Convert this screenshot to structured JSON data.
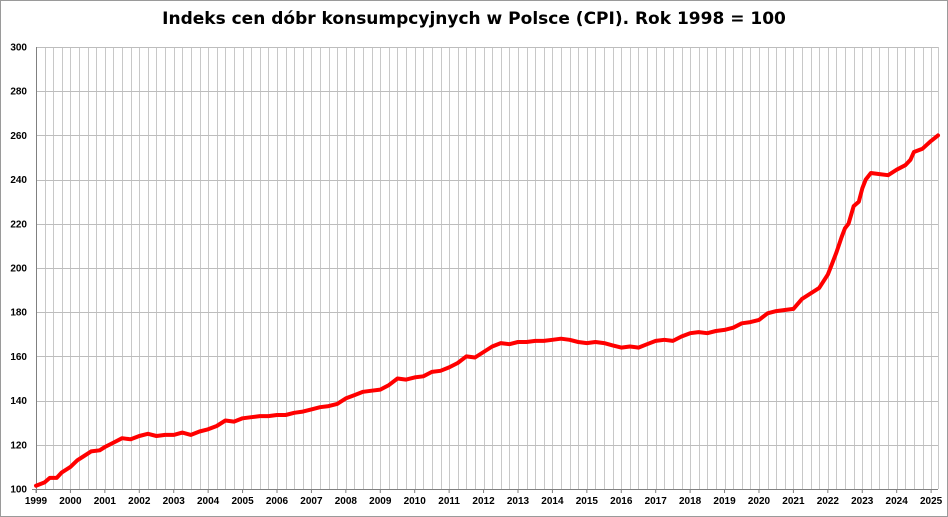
{
  "chart_data": {
    "type": "line",
    "title": "Indeks cen dóbr konsumpcyjnych w Polsce (CPI). Rok 1998 = 100",
    "xlabel": "",
    "ylabel": "",
    "ylim": [
      100,
      300
    ],
    "y_ticks": [
      "100",
      "120",
      "140",
      "160",
      "180",
      "200",
      "220",
      "240",
      "260",
      "280",
      "300"
    ],
    "x_tick_labels": [
      "1999",
      "2000",
      "2001",
      "2002",
      "2003",
      "2004",
      "2005",
      "2006",
      "2007",
      "2008",
      "2009",
      "2010",
      "2011",
      "2012",
      "2013",
      "2014",
      "2015",
      "2016",
      "2017",
      "2018",
      "2019",
      "2020",
      "2021",
      "2022",
      "2023",
      "2024",
      "2025"
    ],
    "xlim": [
      1999,
      2025.2
    ],
    "grid": true,
    "legend": "none",
    "series_color": "#ff0000",
    "series": [
      {
        "x": [
          1999,
          1999.25,
          1999.4,
          1999.6,
          1999.75,
          2000,
          2000.2,
          2000.35,
          2000.6,
          2000.85,
          2001,
          2001.25,
          2001.5,
          2001.75,
          2002,
          2002.25,
          2002.5,
          2002.75,
          2003,
          2003.25,
          2003.5,
          2003.75,
          2004,
          2004.25,
          2004.5,
          2004.75,
          2005,
          2005.25,
          2005.5,
          2005.75,
          2006,
          2006.25,
          2006.5,
          2006.75,
          2007,
          2007.25,
          2007.5,
          2007.75,
          2008,
          2008.25,
          2008.5,
          2008.75,
          2009,
          2009.25,
          2009.5,
          2009.75,
          2010,
          2010.25,
          2010.5,
          2010.75,
          2011,
          2011.25,
          2011.5,
          2011.75,
          2012,
          2012.25,
          2012.5,
          2012.75,
          2013,
          2013.25,
          2013.5,
          2013.75,
          2014,
          2014.25,
          2014.5,
          2014.75,
          2015,
          2015.25,
          2015.5,
          2015.75,
          2016,
          2016.25,
          2016.5,
          2016.75,
          2017,
          2017.25,
          2017.5,
          2017.75,
          2018,
          2018.25,
          2018.5,
          2018.75,
          2019,
          2019.25,
          2019.5,
          2019.75,
          2020,
          2020.25,
          2020.5,
          2020.75,
          2021,
          2021.25,
          2021.5,
          2021.75,
          2022,
          2022.1,
          2022.25,
          2022.4,
          2022.5,
          2022.6,
          2022.75,
          2022.9,
          2023,
          2023.1,
          2023.25,
          2023.5,
          2023.75,
          2024,
          2024.25,
          2024.4,
          2024.5,
          2024.75,
          2025,
          2025.2
        ],
        "y": [
          101.5,
          103,
          105,
          105,
          107.5,
          110,
          113,
          114.5,
          117,
          117.5,
          119,
          121,
          123,
          122.5,
          124,
          125,
          124,
          124.5,
          124.5,
          125.5,
          124.5,
          126,
          127,
          128.5,
          131,
          130.5,
          132,
          132.5,
          133,
          133,
          133.5,
          133.5,
          134.5,
          135,
          136,
          137,
          137.5,
          138.5,
          141,
          142.5,
          144,
          144.5,
          145,
          147,
          150,
          149.5,
          150.5,
          151,
          153,
          153.5,
          155,
          157,
          160,
          159.5,
          162,
          164.5,
          166,
          165.5,
          166.5,
          166.5,
          167,
          167,
          167.5,
          168,
          167.5,
          166.5,
          166,
          166.5,
          166,
          165,
          164,
          164.5,
          164,
          165.5,
          167,
          167.5,
          167,
          169,
          170.5,
          171,
          170.5,
          171.5,
          172,
          173,
          175,
          175.5,
          176.5,
          179.5,
          180.5,
          181,
          181.5,
          186,
          188.5,
          191,
          197,
          201,
          207,
          214,
          218,
          220,
          228,
          230,
          236,
          240,
          243,
          242.5,
          242,
          244.5,
          246.5,
          249,
          252.5,
          254,
          257.5,
          260
        ]
      }
    ]
  }
}
